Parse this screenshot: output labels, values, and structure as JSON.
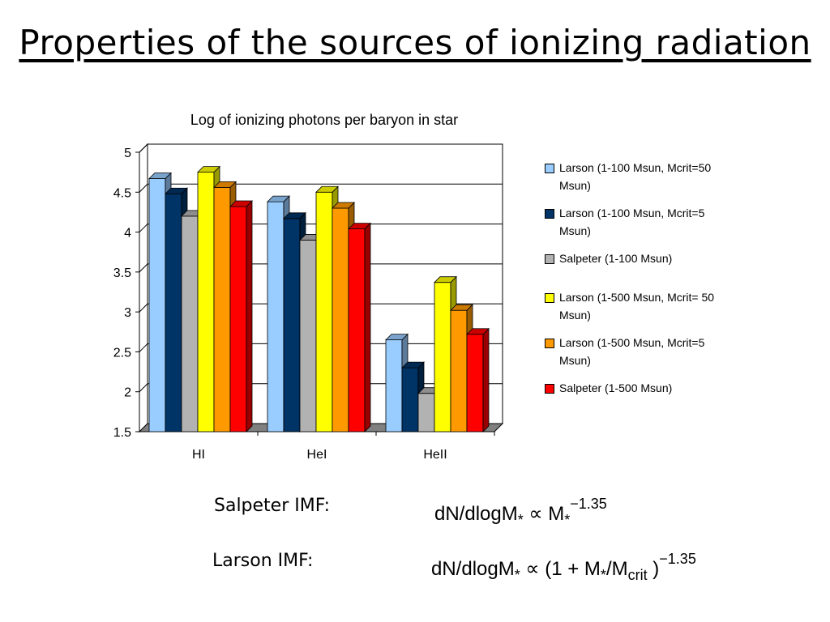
{
  "slide": {
    "title": "Properties of the sources of ionizing radiation"
  },
  "chart_data": {
    "type": "bar",
    "title": "Log of ionizing photons per baryon in star",
    "xlabel": "",
    "ylabel": "",
    "ylim": [
      1.5,
      5
    ],
    "yticks": [
      "1.5",
      "2",
      "2.5",
      "3",
      "3.5",
      "4",
      "4.5",
      "5"
    ],
    "grid": true,
    "legend_position": "right",
    "categories": [
      "HI",
      "HeI",
      "HeII"
    ],
    "series": [
      {
        "name": "Larson (1-100 Msun, Mcrit=50 Msun)",
        "color": "#99CCFF",
        "values": [
          4.67,
          4.38,
          2.65
        ]
      },
      {
        "name": "Larson (1-100 Msun, Mcrit=5 Msun)",
        "color": "#003366",
        "values": [
          4.48,
          4.17,
          2.3
        ]
      },
      {
        "name": "Salpeter (1-100 Msun)",
        "color": "#B2B2B2",
        "values": [
          4.2,
          3.9,
          1.98
        ]
      },
      {
        "name": "Larson (1-500 Msun, Mcrit= 50 Msun)",
        "color": "#FFFF00",
        "values": [
          4.75,
          4.5,
          3.37
        ]
      },
      {
        "name": "Larson (1-500 Msun, Mcrit=5 Msun)",
        "color": "#FF9900",
        "values": [
          4.56,
          4.3,
          3.02
        ]
      },
      {
        "name": "Salpeter (1-500 Msun)",
        "color": "#FF0000",
        "values": [
          4.32,
          4.04,
          2.72
        ]
      }
    ]
  },
  "formulas": {
    "salpeter_label": "Salpeter IMF:",
    "salpeter_lhs": "dN/dlogM",
    "salpeter_star": "*",
    "salpeter_prop": "∝",
    "salpeter_m": "M",
    "salpeter_exp": "−1.35",
    "larson_label": "Larson IMF:",
    "larson_lhs": "dN/dlogM",
    "larson_star": "*",
    "larson_prop": "∝",
    "larson_open": "(1 + M",
    "larson_mid": "/M",
    "larson_crit": "crit",
    "larson_close": ")",
    "larson_exp": "−1.35"
  }
}
